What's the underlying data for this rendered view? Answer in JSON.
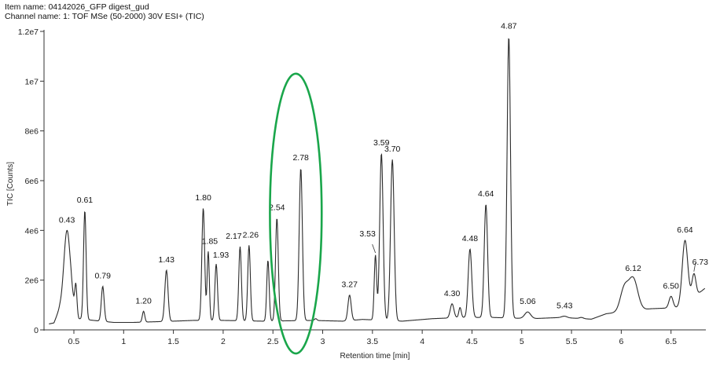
{
  "header": {
    "item_name": "Item name: 04142026_GFP digest_gud",
    "channel_name": "Channel name: 1: TOF MSe (50-2000) 30V ESI+ (TIC)"
  },
  "chart_data": {
    "type": "line",
    "xlabel": "Retention time [min]",
    "ylabel": "TIC [Counts]",
    "xlim": [
      0.2,
      6.85
    ],
    "ylim": [
      0,
      12000000
    ],
    "x_ticks": [
      {
        "v": 0.5,
        "label": "0.5"
      },
      {
        "v": 1,
        "label": "1"
      },
      {
        "v": 1.5,
        "label": "1.5"
      },
      {
        "v": 2,
        "label": "2"
      },
      {
        "v": 2.5,
        "label": "2.5"
      },
      {
        "v": 3,
        "label": "3"
      },
      {
        "v": 3.5,
        "label": "3.5"
      },
      {
        "v": 4,
        "label": "4"
      },
      {
        "v": 4.5,
        "label": "4.5"
      },
      {
        "v": 5,
        "label": "5"
      },
      {
        "v": 5.5,
        "label": "5.5"
      },
      {
        "v": 6,
        "label": "6"
      },
      {
        "v": 6.5,
        "label": "6.5"
      }
    ],
    "y_ticks": [
      {
        "v": 0,
        "label": "0"
      },
      {
        "v": 2000000,
        "label": "2e6"
      },
      {
        "v": 4000000,
        "label": "4e6"
      },
      {
        "v": 6000000,
        "label": "6e6"
      },
      {
        "v": 8000000,
        "label": "8e6"
      },
      {
        "v": 10000000,
        "label": "1e7"
      },
      {
        "v": 12000000,
        "label": "1.2e7"
      }
    ],
    "grid": false,
    "line_color": "#2b2b2b",
    "highlight": {
      "shape": "ellipse",
      "color": "#1aa64b",
      "x_center": 2.73,
      "x_radius": 0.26,
      "y_top": 10300000,
      "y_bottom": -950000
    },
    "baseline": [
      [
        0.2,
        200000
      ],
      [
        0.3,
        280000
      ],
      [
        0.36,
        900000
      ],
      [
        0.47,
        1400000
      ],
      [
        0.55,
        450000
      ],
      [
        0.7,
        380000
      ],
      [
        0.9,
        300000
      ],
      [
        1.1,
        300000
      ],
      [
        1.5,
        350000
      ],
      [
        1.7,
        380000
      ],
      [
        2.0,
        380000
      ],
      [
        2.4,
        350000
      ],
      [
        2.9,
        380000
      ],
      [
        3.2,
        350000
      ],
      [
        3.4,
        420000
      ],
      [
        3.8,
        350000
      ],
      [
        4.1,
        450000
      ],
      [
        4.4,
        500000
      ],
      [
        4.7,
        500000
      ],
      [
        5.1,
        450000
      ],
      [
        5.4,
        500000
      ],
      [
        5.7,
        430000
      ],
      [
        5.85,
        650000
      ],
      [
        6.3,
        850000
      ],
      [
        6.6,
        900000
      ],
      [
        6.85,
        1700000
      ]
    ],
    "peaks": [
      {
        "x": 0.43,
        "y": 4000000,
        "w": 0.03,
        "label": "0.43"
      },
      {
        "x": 0.52,
        "y": 1850000,
        "w": 0.01
      },
      {
        "x": 0.61,
        "y": 4800000,
        "w": 0.013,
        "label": "0.61"
      },
      {
        "x": 0.79,
        "y": 1750000,
        "w": 0.014,
        "label": "0.79"
      },
      {
        "x": 1.2,
        "y": 750000,
        "w": 0.012,
        "label": "1.20"
      },
      {
        "x": 1.43,
        "y": 2400000,
        "w": 0.016,
        "label": "1.43"
      },
      {
        "x": 1.8,
        "y": 4900000,
        "w": 0.014,
        "label": "1.80"
      },
      {
        "x": 1.85,
        "y": 3150000,
        "w": 0.011,
        "label": "1.85"
      },
      {
        "x": 1.93,
        "y": 2650000,
        "w": 0.013,
        "label": "1.93"
      },
      {
        "x": 2.17,
        "y": 3350000,
        "w": 0.013,
        "label": "2.17"
      },
      {
        "x": 2.26,
        "y": 3400000,
        "w": 0.013,
        "label": "2.26"
      },
      {
        "x": 2.45,
        "y": 2800000,
        "w": 0.012
      },
      {
        "x": 2.54,
        "y": 4500000,
        "w": 0.014,
        "label": "2.54"
      },
      {
        "x": 2.78,
        "y": 6500000,
        "w": 0.016,
        "label": "2.78"
      },
      {
        "x": 2.93,
        "y": 450000,
        "w": 0.012
      },
      {
        "x": 3.27,
        "y": 1400000,
        "w": 0.016,
        "label": "3.27"
      },
      {
        "x": 3.53,
        "y": 3000000,
        "w": 0.012,
        "label": "3.53"
      },
      {
        "x": 3.59,
        "y": 7100000,
        "w": 0.017,
        "label": "3.59"
      },
      {
        "x": 3.7,
        "y": 6850000,
        "w": 0.018,
        "label": "3.70"
      },
      {
        "x": 4.3,
        "y": 1050000,
        "w": 0.018,
        "label": "4.30"
      },
      {
        "x": 4.38,
        "y": 900000,
        "w": 0.012
      },
      {
        "x": 4.48,
        "y": 3250000,
        "w": 0.018,
        "label": "4.48"
      },
      {
        "x": 4.64,
        "y": 5050000,
        "w": 0.017,
        "label": "4.64"
      },
      {
        "x": 4.87,
        "y": 11800000,
        "w": 0.017,
        "label": "4.87"
      },
      {
        "x": 5.06,
        "y": 720000,
        "w": 0.03,
        "label": "5.06"
      },
      {
        "x": 5.43,
        "y": 550000,
        "w": 0.025,
        "label": "5.43"
      },
      {
        "x": 5.6,
        "y": 500000,
        "w": 0.02
      },
      {
        "x": 6.03,
        "y": 1650000,
        "w": 0.04
      },
      {
        "x": 6.12,
        "y": 2050000,
        "w": 0.045,
        "label": "6.12"
      },
      {
        "x": 6.5,
        "y": 1350000,
        "w": 0.02,
        "label": "6.50"
      },
      {
        "x": 6.64,
        "y": 3600000,
        "w": 0.028,
        "label": "6.64"
      },
      {
        "x": 6.73,
        "y": 2250000,
        "w": 0.02,
        "label": "6.73"
      }
    ]
  }
}
